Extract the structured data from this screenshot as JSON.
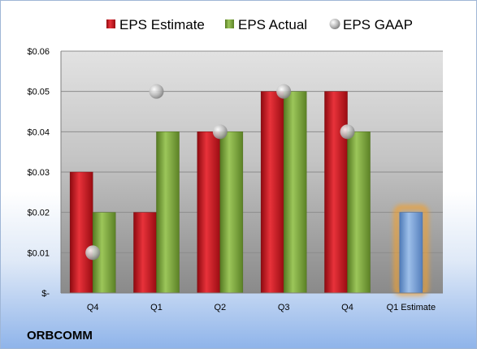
{
  "company": "ORBCOMM",
  "chart_data": {
    "type": "bar",
    "categories": [
      "Q4",
      "Q1",
      "Q2",
      "Q3",
      "Q4",
      "Q1 Estimate"
    ],
    "series": [
      {
        "name": "EPS Estimate",
        "kind": "bar",
        "color": "#c0141c",
        "values": [
          0.03,
          0.02,
          0.04,
          0.05,
          0.05,
          null
        ]
      },
      {
        "name": "EPS Actual",
        "kind": "bar",
        "color": "#7aa33a",
        "values": [
          0.02,
          0.04,
          0.04,
          0.05,
          0.04,
          null
        ]
      },
      {
        "name": "EPS GAAP",
        "kind": "marker",
        "color": "#a6a6a6",
        "values": [
          0.01,
          0.05,
          0.04,
          0.05,
          0.04,
          null
        ]
      },
      {
        "name": "",
        "kind": "bar",
        "color": "#6f9ad3",
        "highlight_color": "#f0a030",
        "values": [
          null,
          null,
          null,
          null,
          null,
          0.02
        ]
      }
    ],
    "y_ticks": [
      {
        "value": 0.06,
        "label": "$0.06"
      },
      {
        "value": 0.05,
        "label": "$0.05"
      },
      {
        "value": 0.04,
        "label": "$0.04"
      },
      {
        "value": 0.03,
        "label": "$0.03"
      },
      {
        "value": 0.02,
        "label": "$0.02"
      },
      {
        "value": 0.01,
        "label": "$0.01"
      },
      {
        "value": 0,
        "label": "$-"
      }
    ],
    "ylim": [
      0,
      0.06
    ],
    "grid": true,
    "legend_position": "top"
  }
}
